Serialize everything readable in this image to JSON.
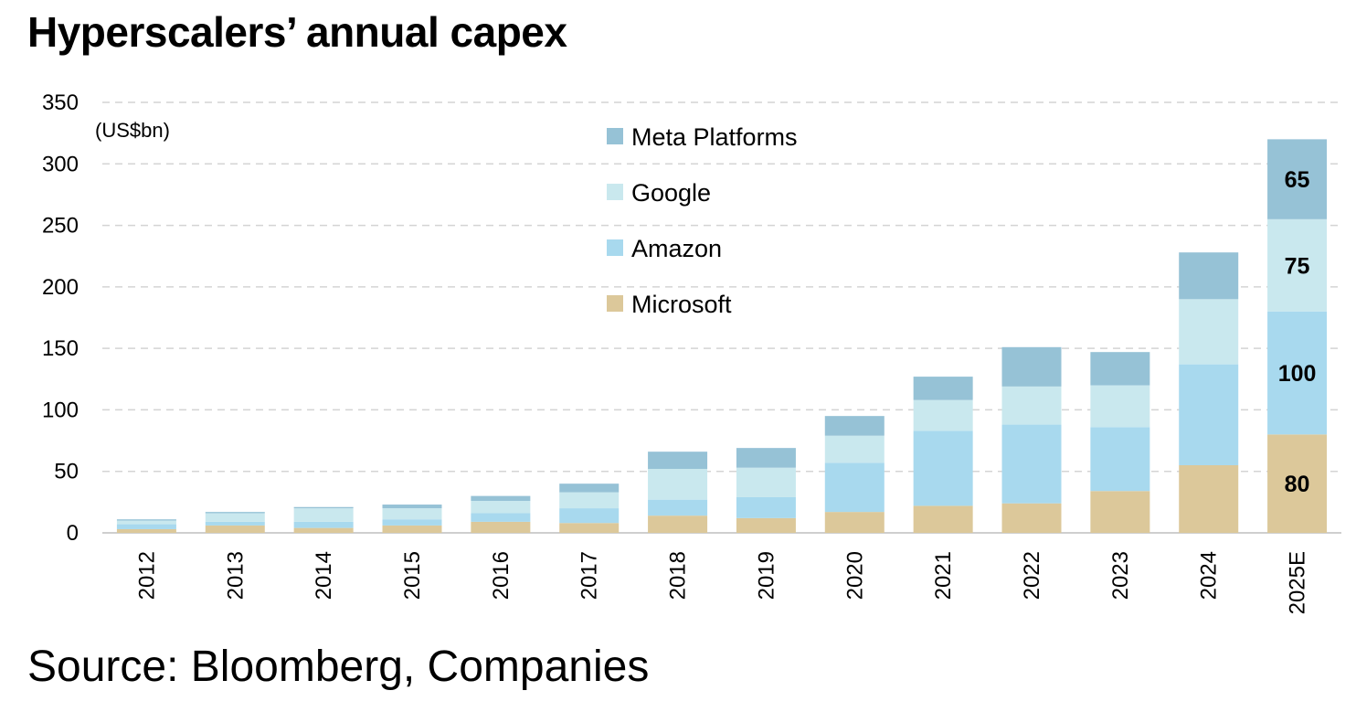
{
  "title": "Hyperscalers’ annual capex",
  "source": "Source: Bloomberg, Companies",
  "chart_data": {
    "type": "bar",
    "stacked": true,
    "unit_label": "(US$bn)",
    "categories": [
      "2012",
      "2013",
      "2014",
      "2015",
      "2016",
      "2017",
      "2018",
      "2019",
      "2020",
      "2021",
      "2022",
      "2023",
      "2024",
      "2025E"
    ],
    "series": [
      {
        "name": "Microsoft",
        "color": "#DCC89A",
        "values": [
          3,
          6,
          4,
          6,
          9,
          8,
          14,
          12,
          17,
          22,
          24,
          34,
          55,
          80
        ]
      },
      {
        "name": "Amazon",
        "color": "#A8D9EE",
        "values": [
          4,
          3,
          5,
          5,
          7,
          12,
          13,
          17,
          40,
          61,
          64,
          52,
          82,
          100
        ]
      },
      {
        "name": "Google",
        "color": "#C9E8EE",
        "values": [
          3,
          7,
          11,
          9,
          10,
          13,
          25,
          24,
          22,
          25,
          31,
          34,
          53,
          75
        ]
      },
      {
        "name": "Meta Platforms",
        "color": "#96C2D6",
        "values": [
          1,
          1,
          1,
          3,
          4,
          7,
          14,
          16,
          16,
          19,
          32,
          27,
          38,
          65
        ]
      }
    ],
    "data_labels": {
      "category": "2025E",
      "values": [
        "80",
        "100",
        "75",
        "65"
      ]
    },
    "ylim": [
      0,
      350
    ],
    "yticks": [
      0,
      50,
      100,
      150,
      200,
      250,
      300,
      350
    ],
    "grid": true,
    "legend_position": "top-center"
  }
}
